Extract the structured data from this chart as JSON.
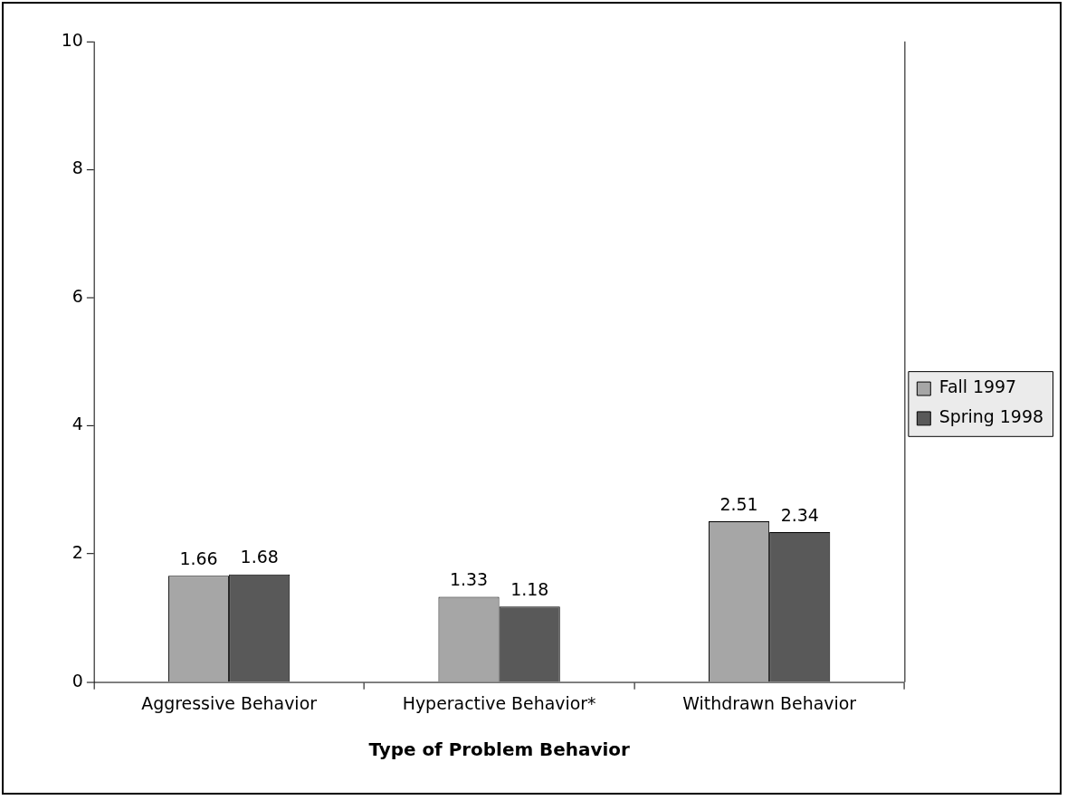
{
  "chart_data": {
    "type": "bar",
    "xlabel": "Type of Problem Behavior",
    "categories": [
      "Aggressive Behavior",
      "Hyperactive Behavior*",
      "Withdrawn Behavior"
    ],
    "series": [
      {
        "name": "Fall 1997",
        "color": "#a6a6a6",
        "values": [
          1.66,
          1.33,
          2.51
        ]
      },
      {
        "name": "Spring 1998",
        "color": "#595959",
        "values": [
          1.68,
          1.18,
          2.34
        ]
      }
    ],
    "ylim": [
      0,
      10
    ],
    "yticks": [
      0,
      2,
      4,
      6,
      8,
      10
    ],
    "grid": false,
    "legend": "right",
    "data_labels": true
  }
}
